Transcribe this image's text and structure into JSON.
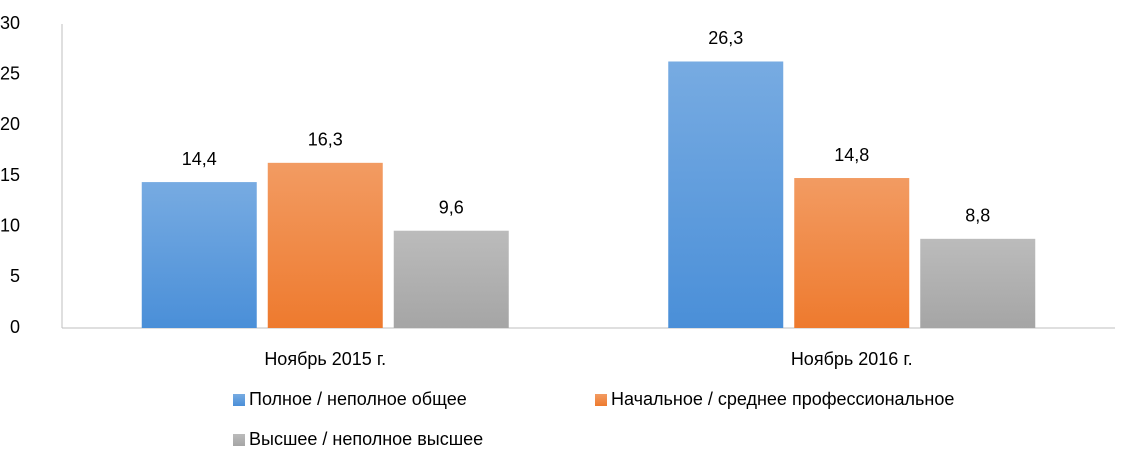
{
  "chart_data": {
    "type": "bar",
    "categories": [
      "Ноябрь 2015 г.",
      "Ноябрь 2016 г."
    ],
    "series": [
      {
        "name": "Полное / неполное общее",
        "color": "#4a8fd8",
        "values": [
          14.4,
          26.3
        ],
        "value_labels": [
          "14,4",
          "26,3"
        ]
      },
      {
        "name": "Начальное / среднее профессиональное",
        "color": "#ee7a2e",
        "values": [
          16.3,
          14.8
        ],
        "value_labels": [
          "16,3",
          "14,8"
        ]
      },
      {
        "name": "Высшее / неполное высшее",
        "color": "#a5a5a5",
        "values": [
          9.6,
          8.8
        ],
        "value_labels": [
          "9,6",
          "8,8"
        ]
      }
    ],
    "ylim": [
      0,
      30
    ],
    "yticks": [
      0,
      5,
      10,
      15,
      20,
      25,
      30
    ],
    "grid": false
  }
}
